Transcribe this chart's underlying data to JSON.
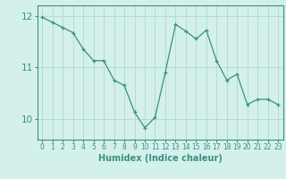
{
  "xlabel": "Humidex (Indice chaleur)",
  "x": [
    0,
    1,
    2,
    3,
    4,
    5,
    6,
    7,
    8,
    9,
    10,
    11,
    12,
    13,
    14,
    15,
    16,
    17,
    18,
    19,
    20,
    21,
    22,
    23
  ],
  "y": [
    11.97,
    11.87,
    11.77,
    11.67,
    11.35,
    11.13,
    11.13,
    10.75,
    10.65,
    10.13,
    9.83,
    10.03,
    10.9,
    11.83,
    11.7,
    11.55,
    11.72,
    11.13,
    10.75,
    10.87,
    10.28,
    10.38,
    10.38,
    10.28
  ],
  "line_color": "#3a8f82",
  "marker_color": "#3a8f82",
  "background_color": "#d4f0eb",
  "grid_color": "#aad4cc",
  "tick_color": "#3a8f82",
  "axis_color": "#3a8f82",
  "label_color": "#3a8f82",
  "ylim": [
    9.6,
    12.2
  ],
  "yticks": [
    10,
    11,
    12
  ],
  "xtick_labels": [
    "0",
    "1",
    "2",
    "3",
    "4",
    "5",
    "6",
    "7",
    "8",
    "9",
    "10",
    "11",
    "12",
    "13",
    "14",
    "15",
    "16",
    "17",
    "18",
    "19",
    "20",
    "21",
    "22",
    "23"
  ]
}
